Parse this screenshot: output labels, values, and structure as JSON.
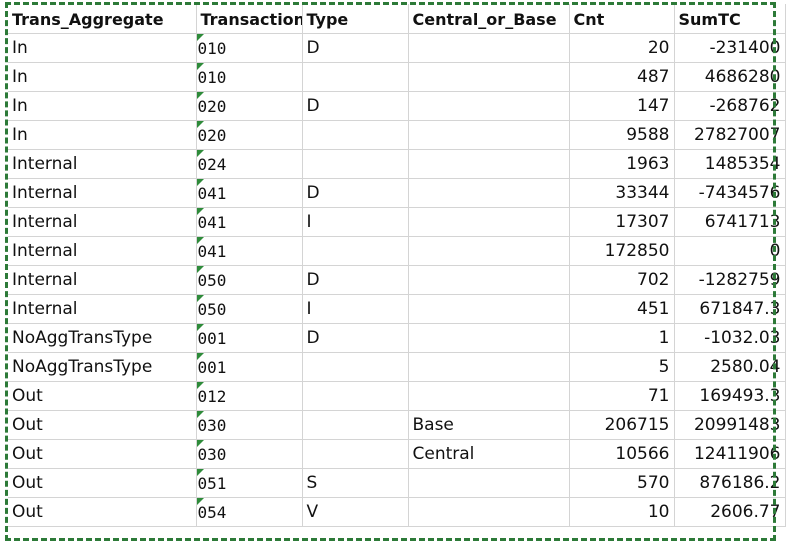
{
  "selection_color": "#2d7a38",
  "error_indicator_color": "#2e8b3a",
  "headers": [
    "Trans_Aggregate",
    "Transaction",
    "Type",
    "Central_or_Base",
    "Cnt",
    "SumTC"
  ],
  "rows": [
    {
      "agg": "In",
      "trans": "010",
      "type": "D",
      "cob": "",
      "cnt": "20",
      "sum": "-231400"
    },
    {
      "agg": "In",
      "trans": "010",
      "type": "",
      "cob": "",
      "cnt": "487",
      "sum": "4686280"
    },
    {
      "agg": "In",
      "trans": "020",
      "type": "D",
      "cob": "",
      "cnt": "147",
      "sum": "-268762"
    },
    {
      "agg": "In",
      "trans": "020",
      "type": "",
      "cob": "",
      "cnt": "9588",
      "sum": "27827007"
    },
    {
      "agg": "Internal",
      "trans": "024",
      "type": "",
      "cob": "",
      "cnt": "1963",
      "sum": "1485354"
    },
    {
      "agg": "Internal",
      "trans": "041",
      "type": "D",
      "cob": "",
      "cnt": "33344",
      "sum": "-7434576"
    },
    {
      "agg": "Internal",
      "trans": "041",
      "type": "I",
      "cob": "",
      "cnt": "17307",
      "sum": "6741713"
    },
    {
      "agg": "Internal",
      "trans": "041",
      "type": "",
      "cob": "",
      "cnt": "172850",
      "sum": "0"
    },
    {
      "agg": "Internal",
      "trans": "050",
      "type": "D",
      "cob": "",
      "cnt": "702",
      "sum": "-1282759"
    },
    {
      "agg": "Internal",
      "trans": "050",
      "type": "I",
      "cob": "",
      "cnt": "451",
      "sum": "671847.3"
    },
    {
      "agg": "NoAggTransType",
      "trans": "001",
      "type": "D",
      "cob": "",
      "cnt": "1",
      "sum": "-1032.03"
    },
    {
      "agg": "NoAggTransType",
      "trans": "001",
      "type": "",
      "cob": "",
      "cnt": "5",
      "sum": "2580.04"
    },
    {
      "agg": "Out",
      "trans": "012",
      "type": "",
      "cob": "",
      "cnt": "71",
      "sum": "169493.3"
    },
    {
      "agg": "Out",
      "trans": "030",
      "type": "",
      "cob": "Base",
      "cnt": "206715",
      "sum": "20991483"
    },
    {
      "agg": "Out",
      "trans": "030",
      "type": "",
      "cob": "Central",
      "cnt": "10566",
      "sum": "12411906"
    },
    {
      "agg": "Out",
      "trans": "051",
      "type": "S",
      "cob": "",
      "cnt": "570",
      "sum": "876186.2"
    },
    {
      "agg": "Out",
      "trans": "054",
      "type": "V",
      "cob": "",
      "cnt": "10",
      "sum": "2606.77"
    }
  ]
}
